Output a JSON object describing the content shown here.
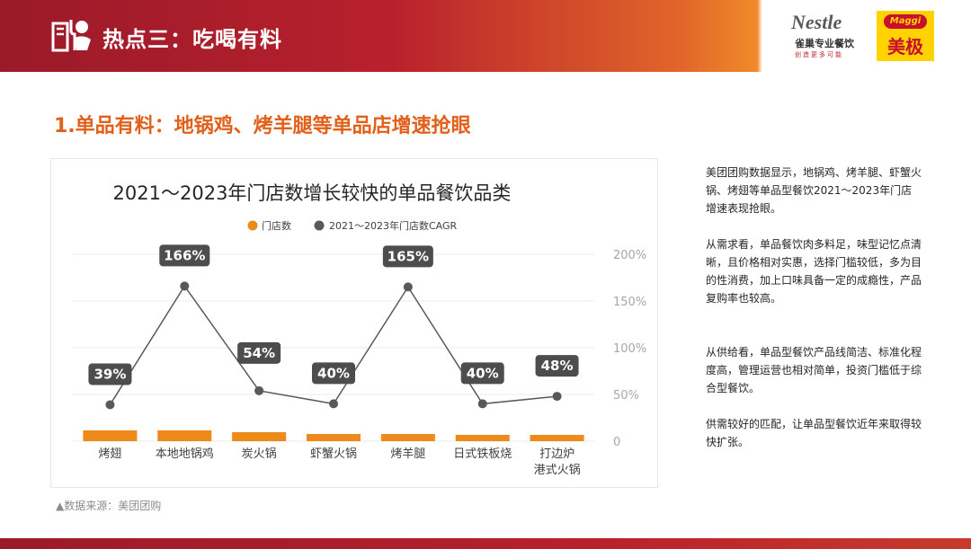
{
  "header": {
    "title": "热点三：吃喝有料",
    "logo_nestle_brand": "Nestle",
    "logo_nestle_sub": "雀巢专业餐饮",
    "logo_nestle_slogan": "创造更多可能",
    "logo_maggi_badge": "Maggi",
    "logo_maggi_text": "美极"
  },
  "section": {
    "title": "1.单品有料：地锅鸡、烤羊腿等单品店增速抢眼"
  },
  "chart_data": {
    "type": "bar",
    "title": "2021～2023年门店数增长较快的单品餐饮品类",
    "categories": [
      "烤翅",
      "本地地锅鸡",
      "炭火锅",
      "虾蟹火锅",
      "烤羊腿",
      "日式铁板烧",
      "打边炉\n港式火锅"
    ],
    "series": [
      {
        "name": "门店数",
        "type": "bar",
        "values": [
          12,
          12,
          10,
          8,
          8,
          7,
          7
        ],
        "color": "#ee8a1a"
      },
      {
        "name": "2021～2023年门店数CAGR",
        "type": "line",
        "values": [
          39,
          166,
          54,
          40,
          165,
          40,
          48
        ],
        "labels": [
          "39%",
          "166%",
          "54%",
          "40%",
          "165%",
          "40%",
          "48%"
        ],
        "color": "#595959"
      }
    ],
    "y_axis_right": {
      "min": 0,
      "max": 200,
      "ticks": [
        "0",
        "50%",
        "100%",
        "150%",
        "200%"
      ]
    },
    "grid": true,
    "legend": "top-center"
  },
  "source": "▲数据来源：美团团购",
  "paragraphs": [
    "美团团购数据显示，地锅鸡、烤羊腿、虾蟹火锅、烤翅等单品型餐饮2021～2023年门店增速表现抢眼。",
    "从需求看，单品餐饮肉多料足，味型记忆点清晰，且价格相对实惠，选择门槛较低，多为目的性消费，加上口味具备一定的成瘾性，产品复购率也较高。",
    "从供给看，单品型餐饮产品线简洁、标准化程度高，管理运营也相对简单，投资门槛低于综合型餐饮。",
    "供需较好的匹配，让单品型餐饮近年来取得较快扩张。"
  ]
}
